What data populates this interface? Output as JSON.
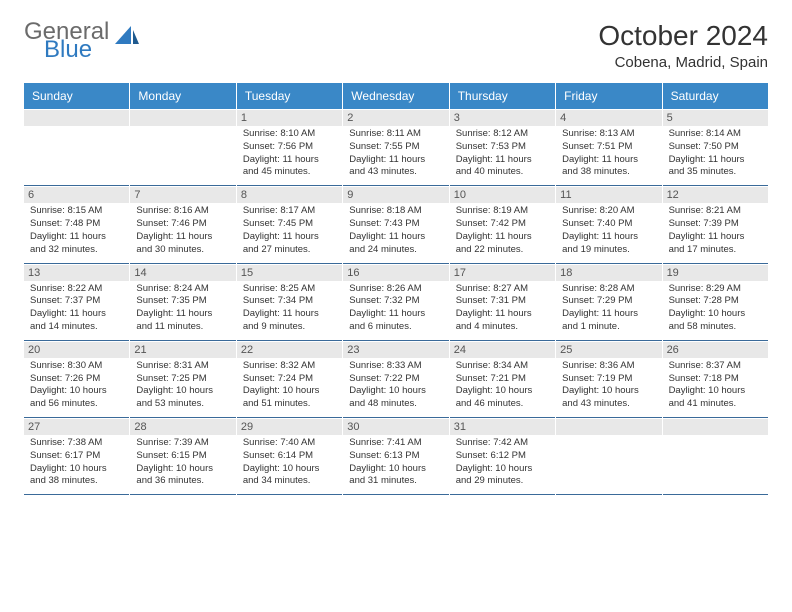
{
  "logo": {
    "textTop": "General",
    "textBottom": "Blue"
  },
  "title": "October 2024",
  "location": "Cobena, Madrid, Spain",
  "colors": {
    "headerBg": "#3a88c7",
    "headerText": "#ffffff",
    "daynumBg": "#e8e8e8",
    "cellBorder": "#3a6a99",
    "logoGray": "#6b6b6b",
    "logoBlue": "#2f7ac0"
  },
  "weekdays": [
    "Sunday",
    "Monday",
    "Tuesday",
    "Wednesday",
    "Thursday",
    "Friday",
    "Saturday"
  ],
  "firstDayOffset": 2,
  "days": [
    {
      "n": "1",
      "sunrise": "Sunrise: 8:10 AM",
      "sunset": "Sunset: 7:56 PM",
      "daylight": "Daylight: 11 hours and 45 minutes."
    },
    {
      "n": "2",
      "sunrise": "Sunrise: 8:11 AM",
      "sunset": "Sunset: 7:55 PM",
      "daylight": "Daylight: 11 hours and 43 minutes."
    },
    {
      "n": "3",
      "sunrise": "Sunrise: 8:12 AM",
      "sunset": "Sunset: 7:53 PM",
      "daylight": "Daylight: 11 hours and 40 minutes."
    },
    {
      "n": "4",
      "sunrise": "Sunrise: 8:13 AM",
      "sunset": "Sunset: 7:51 PM",
      "daylight": "Daylight: 11 hours and 38 minutes."
    },
    {
      "n": "5",
      "sunrise": "Sunrise: 8:14 AM",
      "sunset": "Sunset: 7:50 PM",
      "daylight": "Daylight: 11 hours and 35 minutes."
    },
    {
      "n": "6",
      "sunrise": "Sunrise: 8:15 AM",
      "sunset": "Sunset: 7:48 PM",
      "daylight": "Daylight: 11 hours and 32 minutes."
    },
    {
      "n": "7",
      "sunrise": "Sunrise: 8:16 AM",
      "sunset": "Sunset: 7:46 PM",
      "daylight": "Daylight: 11 hours and 30 minutes."
    },
    {
      "n": "8",
      "sunrise": "Sunrise: 8:17 AM",
      "sunset": "Sunset: 7:45 PM",
      "daylight": "Daylight: 11 hours and 27 minutes."
    },
    {
      "n": "9",
      "sunrise": "Sunrise: 8:18 AM",
      "sunset": "Sunset: 7:43 PM",
      "daylight": "Daylight: 11 hours and 24 minutes."
    },
    {
      "n": "10",
      "sunrise": "Sunrise: 8:19 AM",
      "sunset": "Sunset: 7:42 PM",
      "daylight": "Daylight: 11 hours and 22 minutes."
    },
    {
      "n": "11",
      "sunrise": "Sunrise: 8:20 AM",
      "sunset": "Sunset: 7:40 PM",
      "daylight": "Daylight: 11 hours and 19 minutes."
    },
    {
      "n": "12",
      "sunrise": "Sunrise: 8:21 AM",
      "sunset": "Sunset: 7:39 PM",
      "daylight": "Daylight: 11 hours and 17 minutes."
    },
    {
      "n": "13",
      "sunrise": "Sunrise: 8:22 AM",
      "sunset": "Sunset: 7:37 PM",
      "daylight": "Daylight: 11 hours and 14 minutes."
    },
    {
      "n": "14",
      "sunrise": "Sunrise: 8:24 AM",
      "sunset": "Sunset: 7:35 PM",
      "daylight": "Daylight: 11 hours and 11 minutes."
    },
    {
      "n": "15",
      "sunrise": "Sunrise: 8:25 AM",
      "sunset": "Sunset: 7:34 PM",
      "daylight": "Daylight: 11 hours and 9 minutes."
    },
    {
      "n": "16",
      "sunrise": "Sunrise: 8:26 AM",
      "sunset": "Sunset: 7:32 PM",
      "daylight": "Daylight: 11 hours and 6 minutes."
    },
    {
      "n": "17",
      "sunrise": "Sunrise: 8:27 AM",
      "sunset": "Sunset: 7:31 PM",
      "daylight": "Daylight: 11 hours and 4 minutes."
    },
    {
      "n": "18",
      "sunrise": "Sunrise: 8:28 AM",
      "sunset": "Sunset: 7:29 PM",
      "daylight": "Daylight: 11 hours and 1 minute."
    },
    {
      "n": "19",
      "sunrise": "Sunrise: 8:29 AM",
      "sunset": "Sunset: 7:28 PM",
      "daylight": "Daylight: 10 hours and 58 minutes."
    },
    {
      "n": "20",
      "sunrise": "Sunrise: 8:30 AM",
      "sunset": "Sunset: 7:26 PM",
      "daylight": "Daylight: 10 hours and 56 minutes."
    },
    {
      "n": "21",
      "sunrise": "Sunrise: 8:31 AM",
      "sunset": "Sunset: 7:25 PM",
      "daylight": "Daylight: 10 hours and 53 minutes."
    },
    {
      "n": "22",
      "sunrise": "Sunrise: 8:32 AM",
      "sunset": "Sunset: 7:24 PM",
      "daylight": "Daylight: 10 hours and 51 minutes."
    },
    {
      "n": "23",
      "sunrise": "Sunrise: 8:33 AM",
      "sunset": "Sunset: 7:22 PM",
      "daylight": "Daylight: 10 hours and 48 minutes."
    },
    {
      "n": "24",
      "sunrise": "Sunrise: 8:34 AM",
      "sunset": "Sunset: 7:21 PM",
      "daylight": "Daylight: 10 hours and 46 minutes."
    },
    {
      "n": "25",
      "sunrise": "Sunrise: 8:36 AM",
      "sunset": "Sunset: 7:19 PM",
      "daylight": "Daylight: 10 hours and 43 minutes."
    },
    {
      "n": "26",
      "sunrise": "Sunrise: 8:37 AM",
      "sunset": "Sunset: 7:18 PM",
      "daylight": "Daylight: 10 hours and 41 minutes."
    },
    {
      "n": "27",
      "sunrise": "Sunrise: 7:38 AM",
      "sunset": "Sunset: 6:17 PM",
      "daylight": "Daylight: 10 hours and 38 minutes."
    },
    {
      "n": "28",
      "sunrise": "Sunrise: 7:39 AM",
      "sunset": "Sunset: 6:15 PM",
      "daylight": "Daylight: 10 hours and 36 minutes."
    },
    {
      "n": "29",
      "sunrise": "Sunrise: 7:40 AM",
      "sunset": "Sunset: 6:14 PM",
      "daylight": "Daylight: 10 hours and 34 minutes."
    },
    {
      "n": "30",
      "sunrise": "Sunrise: 7:41 AM",
      "sunset": "Sunset: 6:13 PM",
      "daylight": "Daylight: 10 hours and 31 minutes."
    },
    {
      "n": "31",
      "sunrise": "Sunrise: 7:42 AM",
      "sunset": "Sunset: 6:12 PM",
      "daylight": "Daylight: 10 hours and 29 minutes."
    }
  ]
}
